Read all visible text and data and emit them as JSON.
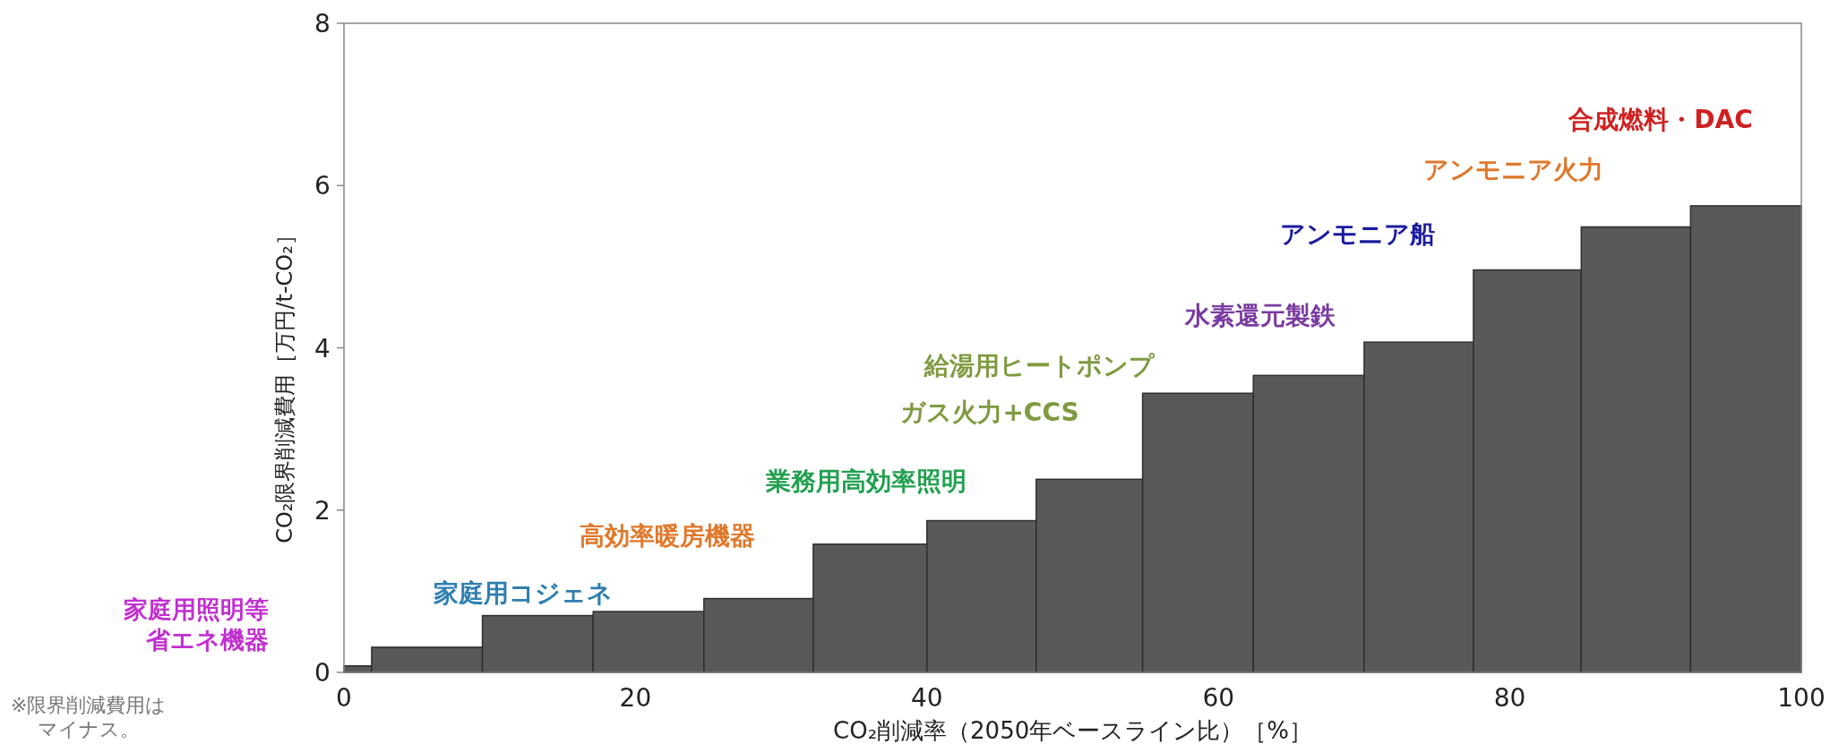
{
  "chart_data": {
    "type": "histogram",
    "xlabel": "CO₂削減率（2050年ベースライン比）［%］",
    "ylabel": "CO₂限界削減費用［万円/t-CO₂］",
    "bins": [
      0,
      1.9,
      9.5,
      17.1,
      24.7,
      32.2,
      40,
      47.5,
      54.8,
      62.4,
      70,
      77.5,
      84.9,
      92.4,
      100
    ],
    "values": [
      0.08,
      0.31,
      0.7,
      0.75,
      0.91,
      1.58,
      1.87,
      2.38,
      3.44,
      3.66,
      4.07,
      4.96,
      5.49,
      5.75
    ],
    "color": "#595959",
    "xlim": [
      0,
      100
    ],
    "xticks": [
      0,
      20,
      40,
      60,
      80,
      100
    ],
    "ylim": [
      0,
      8
    ],
    "yticks": [
      0,
      2,
      4,
      6,
      8
    ],
    "grid": false,
    "annotations": [
      "家庭用照明等省エネ機器",
      "※限界削減費用はマイナス。",
      "家庭用コジェネ",
      "高効率暖房機器",
      "業務用高効率照明",
      "給湯用ヒートポンプ",
      "ガス火力+CCS",
      "水素還元製鉄",
      "アンモニア船",
      "アンモニア火力",
      "合成燃料・DAC"
    ]
  }
}
